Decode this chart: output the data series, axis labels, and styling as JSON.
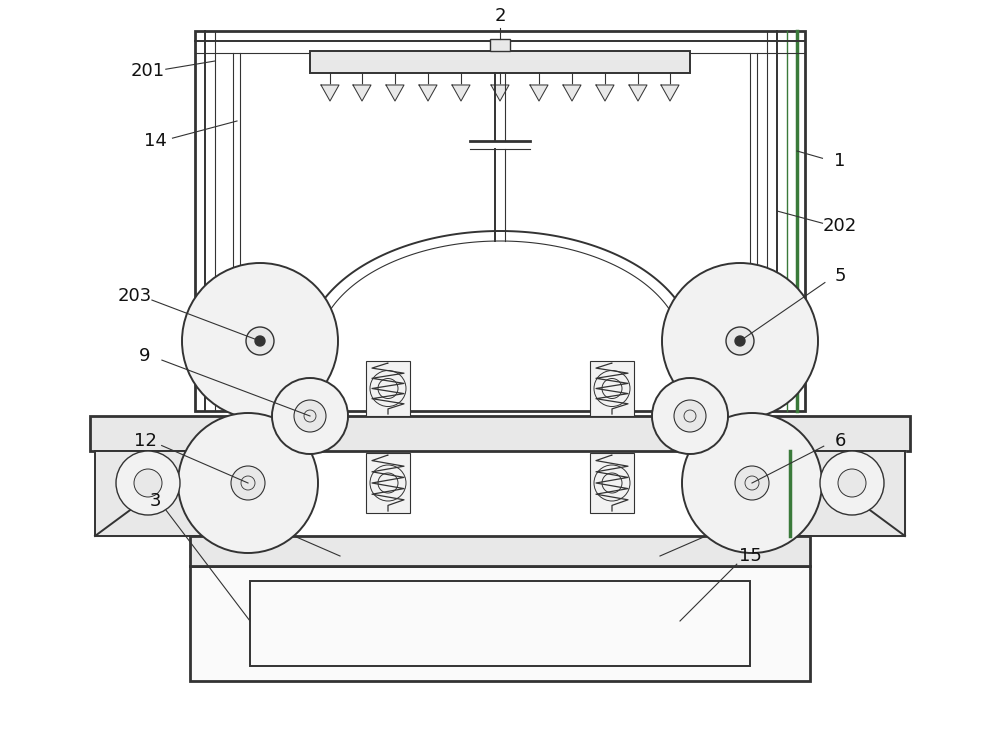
{
  "bg_color": "#ffffff",
  "lc": "#4a4a4a",
  "lc_d": "#333333",
  "lc_green": "#3a7a3a",
  "lc_light": "#888888",
  "fc_light": "#f2f2f2",
  "fc_mid": "#e8e8e8",
  "fc_white": "#fafafa",
  "label_color": "#111111",
  "label_fs": 13,
  "fig_w": 10.0,
  "fig_h": 7.31,
  "lw_main": 1.4,
  "lw_thin": 0.8,
  "lw_thick": 2.0,
  "lw_green": 2.5
}
